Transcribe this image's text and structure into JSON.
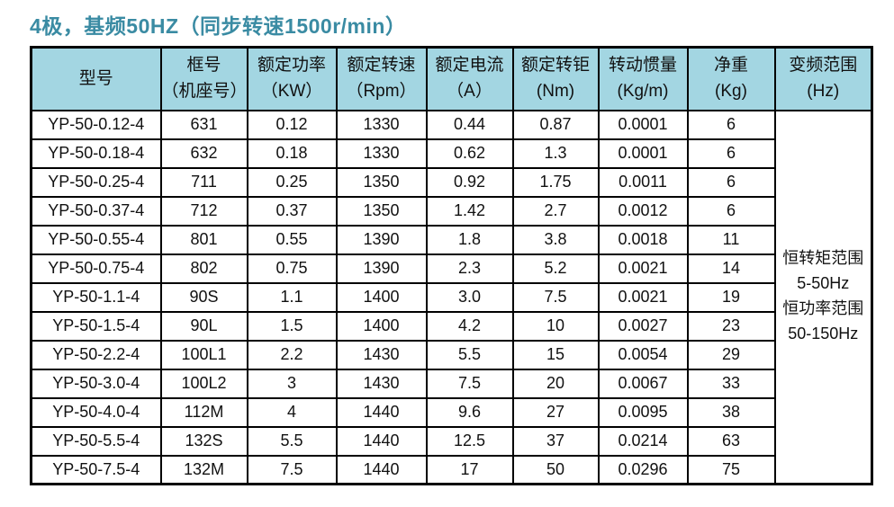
{
  "title": "4极，基频50HZ（同步转速1500r/min）",
  "colors": {
    "title": "#3a8ba3",
    "header_bg": "#a3d6e2",
    "border": "#000000"
  },
  "table": {
    "headers": [
      {
        "line1": "型号",
        "line2": ""
      },
      {
        "line1": "框号",
        "line2": "（机座号）"
      },
      {
        "line1": "额定功率",
        "line2": "（KW）"
      },
      {
        "line1": "额定转速",
        "line2": "（Rpm）"
      },
      {
        "line1": "额定电流",
        "line2": "（A）"
      },
      {
        "line1": "额定转钜",
        "line2": "(Nm)"
      },
      {
        "line1": "转动惯量",
        "line2": "(Kg/m)"
      },
      {
        "line1": "净重",
        "line2": "(Kg)"
      },
      {
        "line1": "变频范围",
        "line2": "(Hz)"
      }
    ],
    "rows": [
      [
        "YP-50-0.12-4",
        "631",
        "0.12",
        "1330",
        "0.44",
        "0.87",
        "0.0001",
        "6"
      ],
      [
        "YP-50-0.18-4",
        "632",
        "0.18",
        "1330",
        "0.62",
        "1.3",
        "0.0001",
        "6"
      ],
      [
        "YP-50-0.25-4",
        "711",
        "0.25",
        "1350",
        "0.92",
        "1.75",
        "0.0011",
        "6"
      ],
      [
        "YP-50-0.37-4",
        "712",
        "0.37",
        "1350",
        "1.42",
        "2.7",
        "0.0012",
        "6"
      ],
      [
        "YP-50-0.55-4",
        "801",
        "0.55",
        "1390",
        "1.8",
        "3.8",
        "0.0018",
        "11"
      ],
      [
        "YP-50-0.75-4",
        "802",
        "0.75",
        "1390",
        "2.3",
        "5.2",
        "0.0021",
        "14"
      ],
      [
        "YP-50-1.1-4",
        "90S",
        "1.1",
        "1400",
        "3.0",
        "7.5",
        "0.0021",
        "19"
      ],
      [
        "YP-50-1.5-4",
        "90L",
        "1.5",
        "1400",
        "4.2",
        "10",
        "0.0027",
        "23"
      ],
      [
        "YP-50-2.2-4",
        "100L1",
        "2.2",
        "1430",
        "5.5",
        "15",
        "0.0054",
        "29"
      ],
      [
        "YP-50-3.0-4",
        "100L2",
        "3",
        "1430",
        "7.5",
        "20",
        "0.0067",
        "33"
      ],
      [
        "YP-50-4.0-4",
        "112M",
        "4",
        "1440",
        "9.6",
        "27",
        "0.0095",
        "38"
      ],
      [
        "YP-50-5.5-4",
        "132S",
        "5.5",
        "1440",
        "12.5",
        "37",
        "0.0214",
        "63"
      ],
      [
        "YP-50-7.5-4",
        "132M",
        "7.5",
        "1440",
        "17",
        "50",
        "0.0296",
        "75"
      ]
    ],
    "freq_range": [
      "恒转矩范围",
      "5-50Hz",
      "恒功率范围",
      "50-150Hz"
    ]
  }
}
